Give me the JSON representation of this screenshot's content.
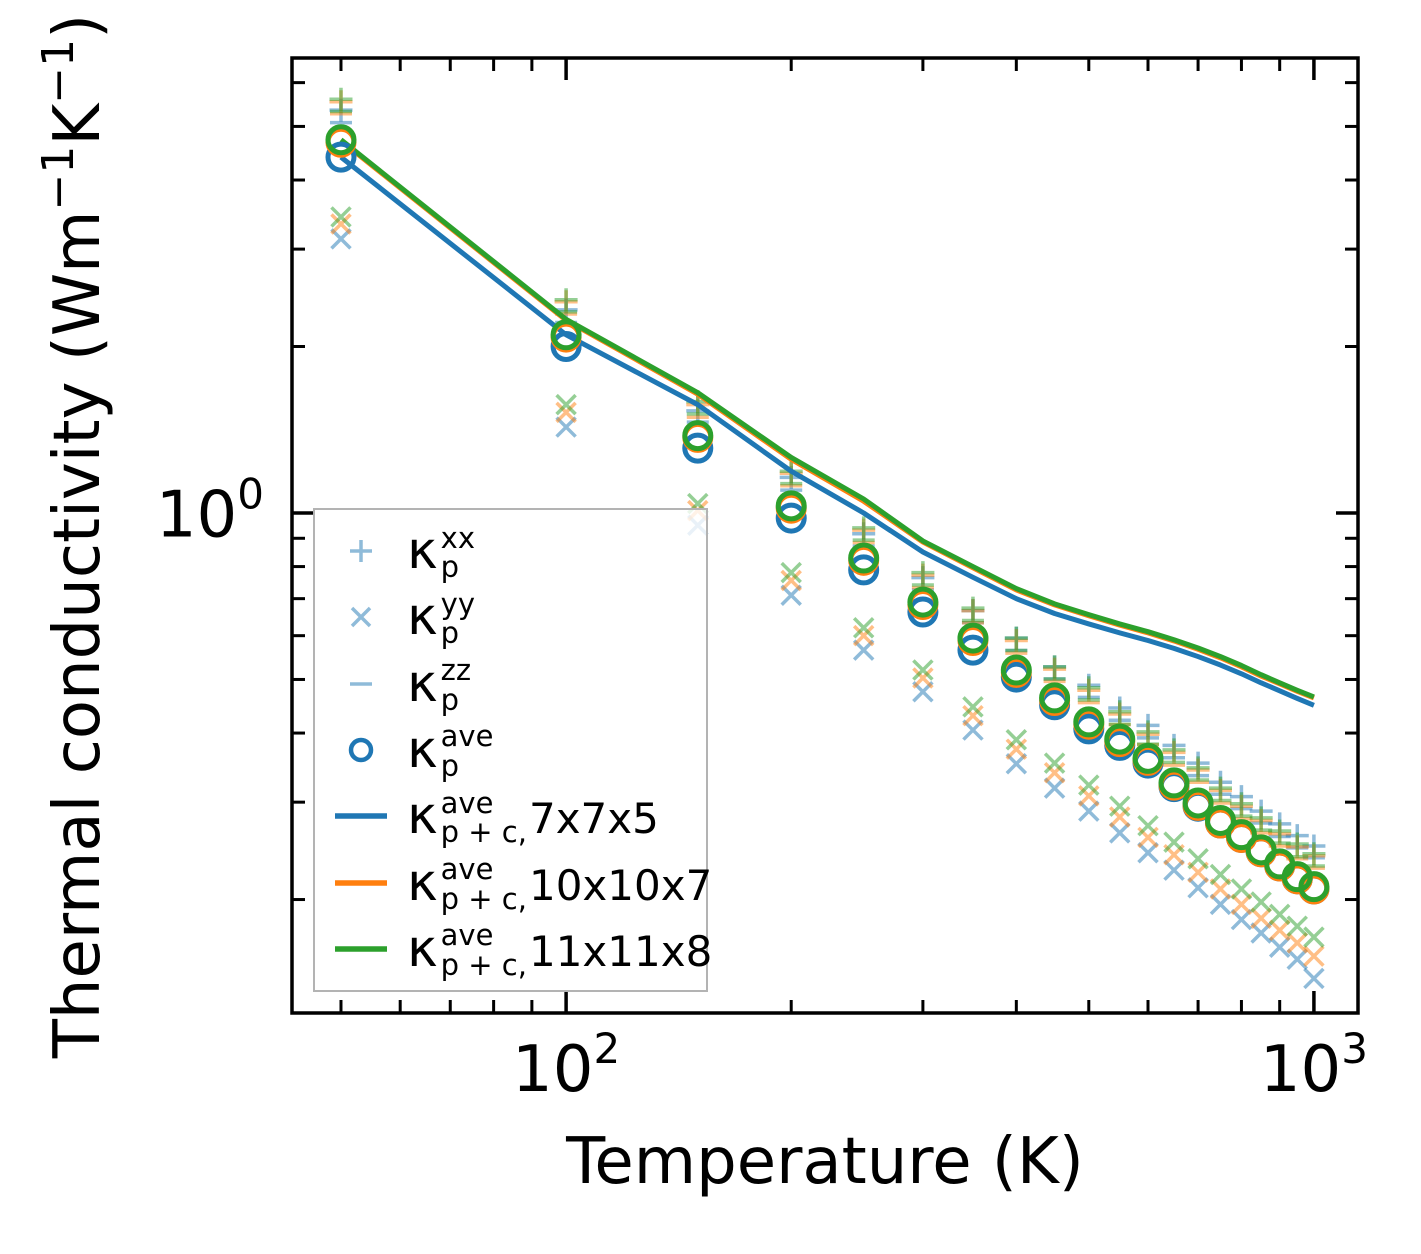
{
  "chart_data": {
    "type": "line+scatter",
    "title": "",
    "xlabel": "Temperature (K)",
    "ylabel": "Thermal conductivity (Wm⁻¹K⁻¹)",
    "ylabel_parts": [
      {
        "text": "Thermal conductivity (Wm",
        "sup": false
      },
      {
        "text": "−1",
        "sup": true
      },
      {
        "text": "K",
        "sup": false
      },
      {
        "text": "−1",
        "sup": true
      },
      {
        "text": ")",
        "sup": false
      }
    ],
    "xscale": "log",
    "yscale": "log",
    "xlim": [
      43.0,
      1145.4
    ],
    "ylim": [
      0.1247,
      6.648
    ],
    "grid": false,
    "legend_position": "lower left",
    "x_ticks": {
      "major": [
        {
          "value": 100,
          "base": "10",
          "exp": "2"
        },
        {
          "value": 1000,
          "base": "10",
          "exp": "3"
        }
      ],
      "minor": [
        50,
        60,
        70,
        80,
        90,
        200,
        300,
        400,
        500,
        600,
        700,
        800,
        900
      ]
    },
    "y_ticks": {
      "major": [
        {
          "value": 1,
          "base": "10",
          "exp": "0"
        }
      ],
      "minor": [
        0.2,
        0.3,
        0.4,
        0.5,
        0.6,
        0.7,
        0.8,
        0.9,
        2,
        3,
        4,
        5,
        6
      ]
    },
    "colors": {
      "blue": "#1f77b4",
      "orange": "#ff7f0e",
      "green": "#2ca02c",
      "marker_alpha": 0.5
    },
    "temperatures": [
      50,
      100,
      150,
      200,
      250,
      300,
      350,
      400,
      450,
      500,
      550,
      600,
      650,
      700,
      750,
      800,
      850,
      900,
      950,
      1000
    ],
    "pale_scatter_series": [
      {
        "id": "kappa-zz-7x7x5",
        "component": "zz",
        "mesh": "7x7x5",
        "marker": "minus",
        "color": "blue",
        "values": [
          5.08,
          2.21,
          1.46,
          1.1,
          0.871,
          0.726,
          0.633,
          0.564,
          0.501,
          0.464,
          0.422,
          0.392,
          0.361,
          0.335,
          0.31,
          0.292,
          0.275,
          0.26,
          0.248,
          0.238
        ]
      },
      {
        "id": "kappa-xx-7x7x5",
        "component": "xx",
        "mesh": "7x7x5",
        "marker": "plus",
        "color": "blue",
        "values": [
          5.35,
          2.33,
          1.53,
          1.16,
          0.917,
          0.764,
          0.666,
          0.594,
          0.527,
          0.488,
          0.444,
          0.413,
          0.38,
          0.353,
          0.326,
          0.307,
          0.289,
          0.274,
          0.261,
          0.25
        ]
      },
      {
        "id": "kappa-yy-7x7x5",
        "component": "yy",
        "mesh": "7x7x5",
        "marker": "cross",
        "color": "blue",
        "values": [
          3.13,
          1.43,
          0.95,
          0.71,
          0.565,
          0.475,
          0.405,
          0.352,
          0.318,
          0.289,
          0.264,
          0.243,
          0.226,
          0.21,
          0.196,
          0.184,
          0.174,
          0.164,
          0.156,
          0.144
        ]
      },
      {
        "id": "kappa-zz-10x10x7",
        "component": "zz",
        "mesh": "10x10x7",
        "marker": "minus",
        "color": "orange",
        "values": [
          5.27,
          2.29,
          1.49,
          1.12,
          0.884,
          0.733,
          0.633,
          0.558,
          0.496,
          0.454,
          0.414,
          0.381,
          0.35,
          0.326,
          0.299,
          0.28,
          0.264,
          0.25,
          0.237,
          0.228
        ]
      },
      {
        "id": "kappa-xx-10x10x7",
        "component": "xx",
        "mesh": "10x10x7",
        "marker": "plus",
        "color": "orange",
        "values": [
          5.54,
          2.41,
          1.57,
          1.18,
          0.931,
          0.772,
          0.666,
          0.588,
          0.522,
          0.478,
          0.433,
          0.398,
          0.369,
          0.343,
          0.315,
          0.295,
          0.278,
          0.263,
          0.249,
          0.24
        ]
      },
      {
        "id": "kappa-yy-10x10x7",
        "component": "yy",
        "mesh": "10x10x7",
        "marker": "cross",
        "color": "orange",
        "values": [
          3.33,
          1.52,
          1.01,
          0.755,
          0.6,
          0.503,
          0.43,
          0.374,
          0.339,
          0.308,
          0.282,
          0.259,
          0.241,
          0.224,
          0.209,
          0.196,
          0.185,
          0.176,
          0.167,
          0.158
        ]
      },
      {
        "id": "kappa-zz-11x11x8",
        "component": "zz",
        "mesh": "11x11x8",
        "marker": "minus",
        "color": "green",
        "values": [
          5.32,
          2.31,
          1.51,
          1.13,
          0.893,
          0.741,
          0.639,
          0.564,
          0.501,
          0.459,
          0.415,
          0.382,
          0.354,
          0.329,
          0.302,
          0.283,
          0.267,
          0.253,
          0.239,
          0.23
        ]
      },
      {
        "id": "kappa-xx-11x11x8",
        "component": "xx",
        "mesh": "11x11x8",
        "marker": "plus",
        "color": "green",
        "values": [
          5.6,
          2.43,
          1.59,
          1.19,
          0.94,
          0.78,
          0.673,
          0.594,
          0.527,
          0.483,
          0.437,
          0.402,
          0.373,
          0.346,
          0.318,
          0.298,
          0.281,
          0.266,
          0.252,
          0.242
        ]
      },
      {
        "id": "kappa-yy-11x11x8",
        "component": "yy",
        "mesh": "11x11x8",
        "marker": "cross",
        "color": "green",
        "values": [
          3.43,
          1.57,
          1.04,
          0.78,
          0.62,
          0.52,
          0.446,
          0.389,
          0.353,
          0.322,
          0.295,
          0.272,
          0.254,
          0.237,
          0.222,
          0.209,
          0.198,
          0.188,
          0.179,
          0.171
        ]
      }
    ],
    "line_series": [
      {
        "id": "kappa-p-plus-c-7x7x5",
        "mesh": "7x7x5",
        "color": "blue",
        "values": [
          4.4,
          2.1,
          1.57,
          1.19,
          1.0,
          0.85,
          0.765,
          0.7,
          0.658,
          0.63,
          0.607,
          0.588,
          0.569,
          0.55,
          0.531,
          0.512,
          0.493,
          0.477,
          0.462,
          0.449
        ]
      },
      {
        "id": "kappa-p-plus-c-10x10x7",
        "mesh": "10x10x7",
        "color": "orange",
        "values": [
          4.71,
          2.23,
          1.64,
          1.25,
          1.05,
          0.886,
          0.796,
          0.726,
          0.682,
          0.652,
          0.627,
          0.607,
          0.587,
          0.567,
          0.547,
          0.527,
          0.507,
          0.491,
          0.476,
          0.463
        ]
      },
      {
        "id": "kappa-p-plus-c-11x11x8",
        "mesh": "11x11x8",
        "color": "green",
        "values": [
          4.73,
          2.24,
          1.65,
          1.26,
          1.06,
          0.89,
          0.8,
          0.73,
          0.685,
          0.655,
          0.63,
          0.61,
          0.59,
          0.57,
          0.55,
          0.53,
          0.51,
          0.493,
          0.478,
          0.465
        ]
      }
    ],
    "ave_scatter_series": [
      {
        "id": "kappa-ave-7x7x5",
        "component": "ave",
        "mesh": "7x7x5",
        "marker": "circle",
        "color": "blue",
        "values": [
          4.4,
          2.0,
          1.31,
          0.979,
          0.789,
          0.662,
          0.565,
          0.505,
          0.45,
          0.407,
          0.38,
          0.353,
          0.32,
          0.295,
          0.275,
          0.259,
          0.244,
          0.23,
          0.218,
          0.209
        ]
      },
      {
        "id": "kappa-ave-10x10x7",
        "component": "ave",
        "mesh": "10x10x7",
        "marker": "circle",
        "color": "orange",
        "values": [
          4.68,
          2.08,
          1.37,
          1.02,
          0.821,
          0.683,
          0.588,
          0.515,
          0.458,
          0.415,
          0.386,
          0.357,
          0.322,
          0.296,
          0.275,
          0.259,
          0.244,
          0.23,
          0.218,
          0.209
        ]
      },
      {
        "id": "kappa-ave-11x11x8",
        "component": "ave",
        "mesh": "11x11x8",
        "marker": "circle",
        "color": "green",
        "values": [
          4.73,
          2.1,
          1.38,
          1.03,
          0.829,
          0.69,
          0.594,
          0.52,
          0.463,
          0.419,
          0.39,
          0.36,
          0.325,
          0.299,
          0.278,
          0.262,
          0.246,
          0.232,
          0.22,
          0.211
        ]
      }
    ],
    "legend": [
      {
        "symbol": "plus",
        "color": "blue",
        "pale": true,
        "kappa": "κ",
        "sup": "xx",
        "sub": "p",
        "suffix": ""
      },
      {
        "symbol": "cross",
        "color": "blue",
        "pale": true,
        "kappa": "κ",
        "sup": "yy",
        "sub": "p",
        "suffix": ""
      },
      {
        "symbol": "minus",
        "color": "blue",
        "pale": true,
        "kappa": "κ",
        "sup": "zz",
        "sub": "p",
        "suffix": ""
      },
      {
        "symbol": "circle",
        "color": "blue",
        "pale": false,
        "kappa": "κ",
        "sup": "ave",
        "sub": "p",
        "suffix": ""
      },
      {
        "symbol": "line",
        "color": "blue",
        "pale": false,
        "kappa": "κ",
        "sup": "ave",
        "sub": "p + c",
        "suffix": ", 7x7x5"
      },
      {
        "symbol": "line",
        "color": "orange",
        "pale": false,
        "kappa": "κ",
        "sup": "ave",
        "sub": "p + c",
        "suffix": ", 10x10x7"
      },
      {
        "symbol": "line",
        "color": "green",
        "pale": false,
        "kappa": "κ",
        "sup": "ave",
        "sub": "p + c",
        "suffix": ", 11x11x8"
      }
    ]
  }
}
